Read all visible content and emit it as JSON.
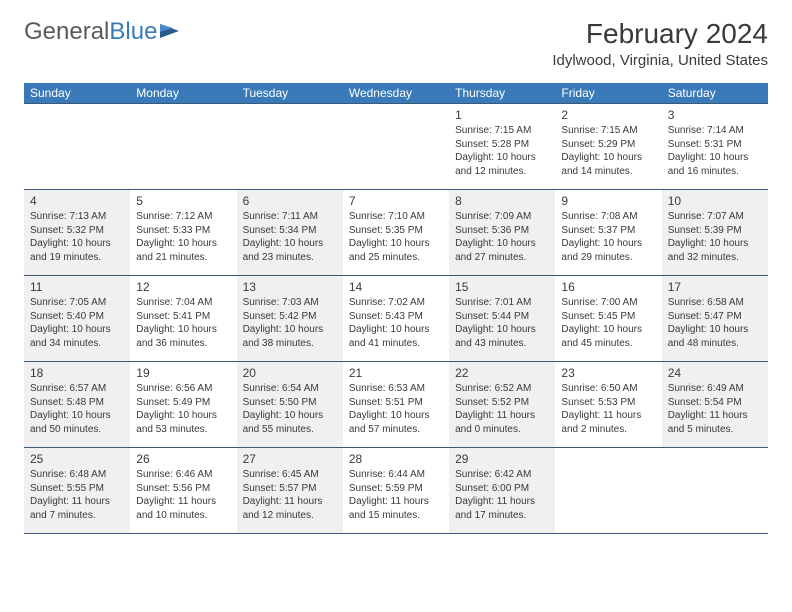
{
  "logo": {
    "text1": "General",
    "text2": "Blue"
  },
  "header": {
    "month_title": "February 2024",
    "location": "Idylwood, Virginia, United States"
  },
  "day_headers": [
    "Sunday",
    "Monday",
    "Tuesday",
    "Wednesday",
    "Thursday",
    "Friday",
    "Saturday"
  ],
  "colors": {
    "header_bg": "#3a7ab8",
    "header_text": "#ffffff",
    "shaded_bg": "#f0f0f0",
    "divider": "#3a5a7a",
    "text": "#3a3a3a",
    "logo_gray": "#5a5a5a",
    "logo_blue": "#3a7ab8"
  },
  "weeks": [
    [
      {
        "day": "",
        "shaded": false
      },
      {
        "day": "",
        "shaded": false
      },
      {
        "day": "",
        "shaded": false
      },
      {
        "day": "",
        "shaded": false
      },
      {
        "day": "1",
        "sunrise": "Sunrise: 7:15 AM",
        "sunset": "Sunset: 5:28 PM",
        "daylight": "Daylight: 10 hours and 12 minutes.",
        "shaded": false
      },
      {
        "day": "2",
        "sunrise": "Sunrise: 7:15 AM",
        "sunset": "Sunset: 5:29 PM",
        "daylight": "Daylight: 10 hours and 14 minutes.",
        "shaded": false
      },
      {
        "day": "3",
        "sunrise": "Sunrise: 7:14 AM",
        "sunset": "Sunset: 5:31 PM",
        "daylight": "Daylight: 10 hours and 16 minutes.",
        "shaded": false
      }
    ],
    [
      {
        "day": "4",
        "sunrise": "Sunrise: 7:13 AM",
        "sunset": "Sunset: 5:32 PM",
        "daylight": "Daylight: 10 hours and 19 minutes.",
        "shaded": true
      },
      {
        "day": "5",
        "sunrise": "Sunrise: 7:12 AM",
        "sunset": "Sunset: 5:33 PM",
        "daylight": "Daylight: 10 hours and 21 minutes.",
        "shaded": false
      },
      {
        "day": "6",
        "sunrise": "Sunrise: 7:11 AM",
        "sunset": "Sunset: 5:34 PM",
        "daylight": "Daylight: 10 hours and 23 minutes.",
        "shaded": true
      },
      {
        "day": "7",
        "sunrise": "Sunrise: 7:10 AM",
        "sunset": "Sunset: 5:35 PM",
        "daylight": "Daylight: 10 hours and 25 minutes.",
        "shaded": false
      },
      {
        "day": "8",
        "sunrise": "Sunrise: 7:09 AM",
        "sunset": "Sunset: 5:36 PM",
        "daylight": "Daylight: 10 hours and 27 minutes.",
        "shaded": true
      },
      {
        "day": "9",
        "sunrise": "Sunrise: 7:08 AM",
        "sunset": "Sunset: 5:37 PM",
        "daylight": "Daylight: 10 hours and 29 minutes.",
        "shaded": false
      },
      {
        "day": "10",
        "sunrise": "Sunrise: 7:07 AM",
        "sunset": "Sunset: 5:39 PM",
        "daylight": "Daylight: 10 hours and 32 minutes.",
        "shaded": true
      }
    ],
    [
      {
        "day": "11",
        "sunrise": "Sunrise: 7:05 AM",
        "sunset": "Sunset: 5:40 PM",
        "daylight": "Daylight: 10 hours and 34 minutes.",
        "shaded": true
      },
      {
        "day": "12",
        "sunrise": "Sunrise: 7:04 AM",
        "sunset": "Sunset: 5:41 PM",
        "daylight": "Daylight: 10 hours and 36 minutes.",
        "shaded": false
      },
      {
        "day": "13",
        "sunrise": "Sunrise: 7:03 AM",
        "sunset": "Sunset: 5:42 PM",
        "daylight": "Daylight: 10 hours and 38 minutes.",
        "shaded": true
      },
      {
        "day": "14",
        "sunrise": "Sunrise: 7:02 AM",
        "sunset": "Sunset: 5:43 PM",
        "daylight": "Daylight: 10 hours and 41 minutes.",
        "shaded": false
      },
      {
        "day": "15",
        "sunrise": "Sunrise: 7:01 AM",
        "sunset": "Sunset: 5:44 PM",
        "daylight": "Daylight: 10 hours and 43 minutes.",
        "shaded": true
      },
      {
        "day": "16",
        "sunrise": "Sunrise: 7:00 AM",
        "sunset": "Sunset: 5:45 PM",
        "daylight": "Daylight: 10 hours and 45 minutes.",
        "shaded": false
      },
      {
        "day": "17",
        "sunrise": "Sunrise: 6:58 AM",
        "sunset": "Sunset: 5:47 PM",
        "daylight": "Daylight: 10 hours and 48 minutes.",
        "shaded": true
      }
    ],
    [
      {
        "day": "18",
        "sunrise": "Sunrise: 6:57 AM",
        "sunset": "Sunset: 5:48 PM",
        "daylight": "Daylight: 10 hours and 50 minutes.",
        "shaded": true
      },
      {
        "day": "19",
        "sunrise": "Sunrise: 6:56 AM",
        "sunset": "Sunset: 5:49 PM",
        "daylight": "Daylight: 10 hours and 53 minutes.",
        "shaded": false
      },
      {
        "day": "20",
        "sunrise": "Sunrise: 6:54 AM",
        "sunset": "Sunset: 5:50 PM",
        "daylight": "Daylight: 10 hours and 55 minutes.",
        "shaded": true
      },
      {
        "day": "21",
        "sunrise": "Sunrise: 6:53 AM",
        "sunset": "Sunset: 5:51 PM",
        "daylight": "Daylight: 10 hours and 57 minutes.",
        "shaded": false
      },
      {
        "day": "22",
        "sunrise": "Sunrise: 6:52 AM",
        "sunset": "Sunset: 5:52 PM",
        "daylight": "Daylight: 11 hours and 0 minutes.",
        "shaded": true
      },
      {
        "day": "23",
        "sunrise": "Sunrise: 6:50 AM",
        "sunset": "Sunset: 5:53 PM",
        "daylight": "Daylight: 11 hours and 2 minutes.",
        "shaded": false
      },
      {
        "day": "24",
        "sunrise": "Sunrise: 6:49 AM",
        "sunset": "Sunset: 5:54 PM",
        "daylight": "Daylight: 11 hours and 5 minutes.",
        "shaded": true
      }
    ],
    [
      {
        "day": "25",
        "sunrise": "Sunrise: 6:48 AM",
        "sunset": "Sunset: 5:55 PM",
        "daylight": "Daylight: 11 hours and 7 minutes.",
        "shaded": true
      },
      {
        "day": "26",
        "sunrise": "Sunrise: 6:46 AM",
        "sunset": "Sunset: 5:56 PM",
        "daylight": "Daylight: 11 hours and 10 minutes.",
        "shaded": false
      },
      {
        "day": "27",
        "sunrise": "Sunrise: 6:45 AM",
        "sunset": "Sunset: 5:57 PM",
        "daylight": "Daylight: 11 hours and 12 minutes.",
        "shaded": true
      },
      {
        "day": "28",
        "sunrise": "Sunrise: 6:44 AM",
        "sunset": "Sunset: 5:59 PM",
        "daylight": "Daylight: 11 hours and 15 minutes.",
        "shaded": false
      },
      {
        "day": "29",
        "sunrise": "Sunrise: 6:42 AM",
        "sunset": "Sunset: 6:00 PM",
        "daylight": "Daylight: 11 hours and 17 minutes.",
        "shaded": true
      },
      {
        "day": "",
        "shaded": false
      },
      {
        "day": "",
        "shaded": false
      }
    ]
  ]
}
